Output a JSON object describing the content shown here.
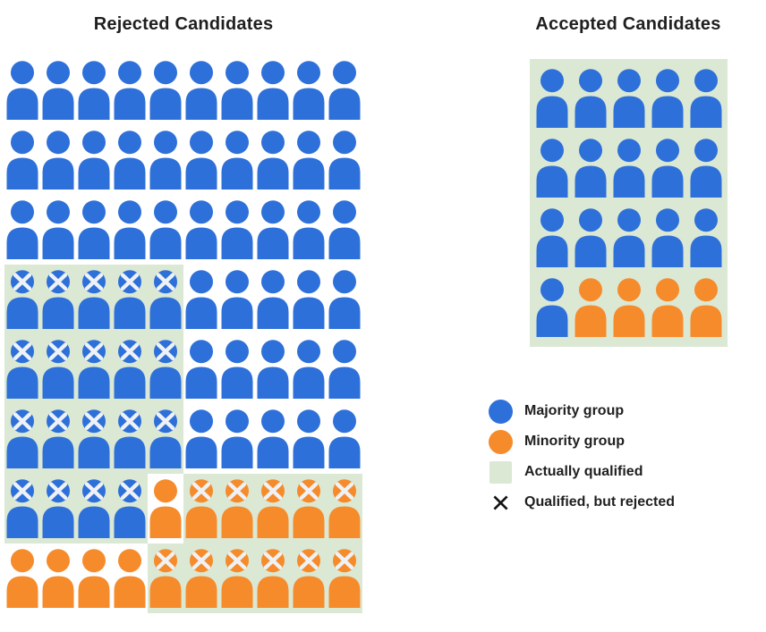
{
  "titles": {
    "rejected": "Rejected Candidates",
    "accepted": "Accepted Candidates"
  },
  "colors": {
    "majority": "#2e70d9",
    "minority": "#f68b2b",
    "qualified_bg": "#dbe8d4",
    "x_on_person": "#eef1f5",
    "legend_x": "#141414",
    "text": "#1f1f1f"
  },
  "legend": {
    "items": [
      {
        "swatch": "majority-circle",
        "label": "Majority group"
      },
      {
        "swatch": "minority-circle",
        "label": "Minority group"
      },
      {
        "swatch": "qualified-square",
        "label": "Actually qualified"
      },
      {
        "swatch": "rejected-x",
        "label": "Qualified, but rejected"
      }
    ]
  },
  "cell_codes": {
    "b": "majority person (blue)",
    "o": "minority person (orange)",
    "B": "majority person, qualified but rejected (X mark, green background)",
    "O": "minority person, qualified but rejected (X mark, green background)"
  },
  "rejected_grid": {
    "columns": 10,
    "rows": [
      "bbbbbbbbbb",
      "bbbbbbbbbb",
      "bbbbbbbbbb",
      "BBBBBbbbbb",
      "BBBBBbbbbb",
      "BBBBBbbbbb",
      "BBBBoOOOOO",
      "ooooOOOOOO"
    ]
  },
  "accepted_grid": {
    "columns": 5,
    "all_qualified": true,
    "rows": [
      "bbbbb",
      "bbbbb",
      "bbbbb",
      "boooo"
    ]
  }
}
